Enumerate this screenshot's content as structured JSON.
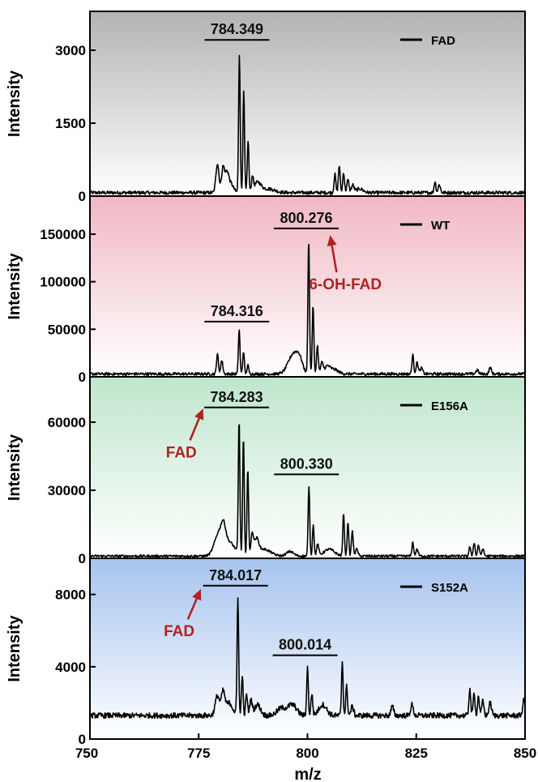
{
  "chart_data": {
    "type": "line",
    "xlabel": "m/z",
    "xlim": [
      750,
      850
    ],
    "xticks": [
      750,
      775,
      800,
      825,
      850
    ],
    "panels": [
      {
        "legend": "FAD",
        "ylabel": "Intensity",
        "ylim": [
          0,
          3800
        ],
        "yticks": [
          0,
          1500,
          3000
        ],
        "bg": [
          "#b3b3b3",
          "#ffffff"
        ],
        "baseline": 70,
        "noise": 35,
        "peaks": [
          [
            779.3,
            600,
            0.35
          ],
          [
            780.6,
            520,
            0.35
          ],
          [
            781.5,
            380,
            0.4
          ],
          [
            782.4,
            180,
            0.6
          ],
          [
            784.35,
            2850,
            0.18
          ],
          [
            785.35,
            2080,
            0.18
          ],
          [
            786.35,
            1080,
            0.18
          ],
          [
            787.35,
            300,
            0.2
          ],
          [
            788.5,
            200,
            0.8
          ],
          [
            791.0,
            80,
            1.5
          ],
          [
            806.3,
            380,
            0.2
          ],
          [
            807.3,
            560,
            0.2
          ],
          [
            808.3,
            420,
            0.2
          ],
          [
            809.3,
            260,
            0.25
          ],
          [
            810.4,
            150,
            0.3
          ],
          [
            812.0,
            80,
            0.8
          ],
          [
            829.3,
            230,
            0.2
          ],
          [
            830.3,
            170,
            0.25
          ]
        ],
        "peak_labels": [
          {
            "x": 784.349,
            "y": 3330,
            "text": "784.349"
          }
        ],
        "annotations": []
      },
      {
        "legend": "WT",
        "ylabel": "Intensity",
        "ylim": [
          0,
          190000
        ],
        "yticks": [
          0,
          50000,
          100000,
          150000
        ],
        "bg": [
          "#f0b8c3",
          "#ffffff"
        ],
        "baseline": 3000,
        "noise": 1500,
        "peaks": [
          [
            779.3,
            22000,
            0.2
          ],
          [
            780.3,
            14000,
            0.25
          ],
          [
            784.3,
            47000,
            0.18
          ],
          [
            785.3,
            24000,
            0.18
          ],
          [
            786.3,
            9000,
            0.2
          ],
          [
            796.8,
            21000,
            1.2
          ],
          [
            798.2,
            10000,
            0.7
          ],
          [
            800.28,
            141000,
            0.18
          ],
          [
            801.28,
            72000,
            0.18
          ],
          [
            802.28,
            30000,
            0.2
          ],
          [
            803.3,
            11000,
            0.3
          ],
          [
            804.5,
            7000,
            0.6
          ],
          [
            806.0,
            5000,
            1.0
          ],
          [
            824.2,
            20000,
            0.2
          ],
          [
            825.2,
            12000,
            0.25
          ],
          [
            826.2,
            6000,
            0.3
          ],
          [
            842.0,
            7000,
            0.25
          ],
          [
            839.0,
            4000,
            0.3
          ]
        ],
        "peak_labels": [
          {
            "x": 784.316,
            "y": 64000,
            "text": "784.316"
          },
          {
            "x": 800.276,
            "y": 162000,
            "text": "800.276"
          }
        ],
        "annotations": [
          {
            "text": "6-OH-FAD",
            "tx": 808.7,
            "ty": 98000,
            "ax": 805.2,
            "ay": 149000,
            "color": "#b22222"
          }
        ]
      },
      {
        "legend": "E156A",
        "ylabel": "Intensity",
        "ylim": [
          0,
          80000
        ],
        "yticks": [
          0,
          30000,
          60000
        ],
        "bg": [
          "#bfe6cc",
          "#ffffff"
        ],
        "baseline": 1000,
        "noise": 500,
        "peaks": [
          [
            779.6,
            9500,
            1.0
          ],
          [
            780.7,
            7000,
            0.5
          ],
          [
            782.0,
            6000,
            1.3
          ],
          [
            784.28,
            59000,
            0.18
          ],
          [
            785.28,
            52000,
            0.18
          ],
          [
            786.28,
            38000,
            0.18
          ],
          [
            787.3,
            9000,
            0.3
          ],
          [
            788.3,
            6500,
            0.5
          ],
          [
            790.0,
            3000,
            1.5
          ],
          [
            796.0,
            2000,
            0.8
          ],
          [
            800.33,
            31000,
            0.18
          ],
          [
            801.33,
            14000,
            0.18
          ],
          [
            802.35,
            5000,
            0.25
          ],
          [
            805.0,
            3000,
            1.2
          ],
          [
            808.3,
            19000,
            0.18
          ],
          [
            809.3,
            15000,
            0.18
          ],
          [
            810.3,
            11000,
            0.2
          ],
          [
            811.3,
            3000,
            0.3
          ],
          [
            824.2,
            6000,
            0.2
          ],
          [
            825.2,
            3000,
            0.25
          ],
          [
            837.3,
            4000,
            0.2
          ],
          [
            838.3,
            6000,
            0.2
          ],
          [
            839.3,
            5000,
            0.2
          ],
          [
            840.3,
            3000,
            0.25
          ]
        ],
        "peak_labels": [
          {
            "x": 784.283,
            "y": 69000,
            "text": "784.283"
          },
          {
            "x": 800.33,
            "y": 39500,
            "text": "800.330"
          }
        ],
        "annotations": [
          {
            "text": "FAD",
            "tx": 771.0,
            "ty": 47000,
            "ax": 776.0,
            "ay": 66000,
            "color": "#b22222"
          }
        ]
      },
      {
        "legend": "S152A",
        "ylabel": "Intensity",
        "ylim": [
          0,
          10000
        ],
        "yticks": [
          0,
          4000,
          8000
        ],
        "bg": [
          "#a6c3ee",
          "#ffffff"
        ],
        "baseline": 1300,
        "noise": 150,
        "peaks": [
          [
            779.3,
            1100,
            0.5
          ],
          [
            780.6,
            1200,
            0.4
          ],
          [
            782.0,
            700,
            0.8
          ],
          [
            784.0,
            6600,
            0.18
          ],
          [
            785.0,
            2300,
            0.18
          ],
          [
            786.0,
            1200,
            0.2
          ],
          [
            787.0,
            800,
            0.3
          ],
          [
            788.5,
            600,
            0.7
          ],
          [
            794.0,
            400,
            1.0
          ],
          [
            796.5,
            600,
            1.0
          ],
          [
            800.0,
            2700,
            0.18
          ],
          [
            801.0,
            1200,
            0.2
          ],
          [
            803.5,
            600,
            0.9
          ],
          [
            808.0,
            3000,
            0.18
          ],
          [
            809.0,
            1600,
            0.2
          ],
          [
            810.3,
            500,
            0.3
          ],
          [
            819.5,
            500,
            0.3
          ],
          [
            824.0,
            600,
            0.3
          ],
          [
            837.3,
            1500,
            0.2
          ],
          [
            838.3,
            1300,
            0.2
          ],
          [
            839.3,
            1100,
            0.2
          ],
          [
            840.3,
            800,
            0.25
          ],
          [
            842.0,
            700,
            0.3
          ],
          [
            849.8,
            900,
            0.3
          ]
        ],
        "peak_labels": [
          {
            "x": 784.017,
            "y": 8800,
            "text": "784.017"
          },
          {
            "x": 800.014,
            "y": 4950,
            "text": "800.014"
          }
        ],
        "annotations": [
          {
            "text": "FAD",
            "tx": 770.5,
            "ty": 6000,
            "ax": 775.5,
            "ay": 8300,
            "color": "#b22222"
          }
        ]
      }
    ]
  }
}
